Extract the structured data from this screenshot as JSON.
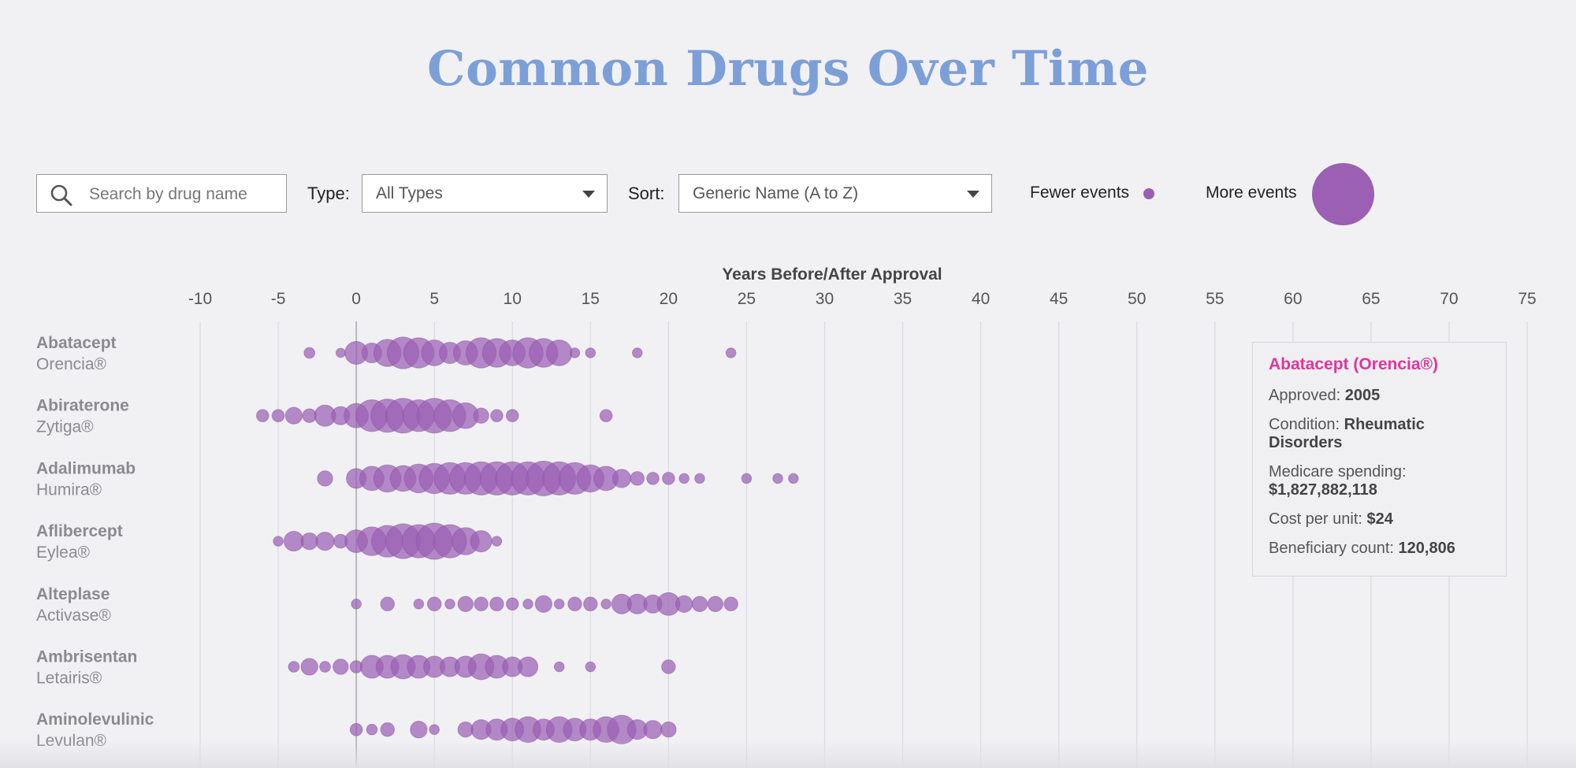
{
  "page": {
    "title": "Common Drugs Over Time"
  },
  "controls": {
    "search_placeholder": "Search by drug name",
    "type_label": "Type:",
    "type_value": "All Types",
    "sort_label": "Sort:",
    "sort_value": "Generic Name (A to Z)",
    "legend_fewer": "Fewer events",
    "legend_more": "More events"
  },
  "icons": {
    "search": "search-icon",
    "dropdown": "chevron-down-icon"
  },
  "colors": {
    "title": "#7c9fd8",
    "bubble": "#9b5fb4",
    "highlight": "#e0359a"
  },
  "tooltip": {
    "title": "Abatacept (Orencia®)",
    "approved_label": "Approved:",
    "approved_value": "2005",
    "condition_label": "Condition:",
    "condition_value": "Rheumatic Disorders",
    "spending_label": "Medicare spending:",
    "spending_value": "$1,827,882,118",
    "cost_label": "Cost per unit:",
    "cost_value": "$24",
    "beneficiary_label": "Beneficiary count:",
    "beneficiary_value": "120,806"
  },
  "chart_data": {
    "type": "scatter",
    "xlabel": "Years Before/After Approval",
    "xlim": [
      -10,
      75
    ],
    "xticks": [
      -10,
      -5,
      0,
      5,
      10,
      15,
      20,
      25,
      30,
      35,
      40,
      45,
      50,
      55,
      60,
      65,
      70,
      75
    ],
    "size_encoding": "number of events (relative)",
    "drugs": [
      {
        "generic": "Abatacept",
        "brand": "Orencia®",
        "points": [
          [
            -3,
            0.15
          ],
          [
            -1,
            0.1
          ],
          [
            0,
            0.55
          ],
          [
            1,
            0.45
          ],
          [
            2,
            0.7
          ],
          [
            3,
            0.85
          ],
          [
            4,
            0.8
          ],
          [
            5,
            0.65
          ],
          [
            6,
            0.5
          ],
          [
            7,
            0.6
          ],
          [
            8,
            0.8
          ],
          [
            9,
            0.75
          ],
          [
            10,
            0.65
          ],
          [
            11,
            0.8
          ],
          [
            12,
            0.75
          ],
          [
            13,
            0.65
          ],
          [
            14,
            0.12
          ],
          [
            15,
            0.12
          ],
          [
            18,
            0.12
          ],
          [
            24,
            0.12
          ]
        ]
      },
      {
        "generic": "Abiraterone",
        "brand": "Zytiga®",
        "points": [
          [
            -6,
            0.2
          ],
          [
            -5,
            0.2
          ],
          [
            -4,
            0.35
          ],
          [
            -3,
            0.25
          ],
          [
            -2,
            0.5
          ],
          [
            -1,
            0.4
          ],
          [
            0,
            0.6
          ],
          [
            1,
            0.85
          ],
          [
            2,
            0.9
          ],
          [
            3,
            0.95
          ],
          [
            4,
            0.85
          ],
          [
            5,
            0.95
          ],
          [
            6,
            0.85
          ],
          [
            7,
            0.65
          ],
          [
            8,
            0.3
          ],
          [
            9,
            0.2
          ],
          [
            10,
            0.2
          ],
          [
            16,
            0.2
          ]
        ]
      },
      {
        "generic": "Adalimumab",
        "brand": "Humira®",
        "points": [
          [
            -2,
            0.3
          ],
          [
            0,
            0.45
          ],
          [
            1,
            0.6
          ],
          [
            2,
            0.7
          ],
          [
            3,
            0.65
          ],
          [
            4,
            0.75
          ],
          [
            5,
            0.8
          ],
          [
            6,
            0.85
          ],
          [
            7,
            0.85
          ],
          [
            8,
            0.9
          ],
          [
            9,
            0.9
          ],
          [
            10,
            0.9
          ],
          [
            11,
            0.9
          ],
          [
            12,
            0.95
          ],
          [
            13,
            0.9
          ],
          [
            14,
            0.85
          ],
          [
            15,
            0.7
          ],
          [
            16,
            0.6
          ],
          [
            17,
            0.4
          ],
          [
            18,
            0.25
          ],
          [
            19,
            0.2
          ],
          [
            20,
            0.2
          ],
          [
            21,
            0.12
          ],
          [
            22,
            0.12
          ],
          [
            25,
            0.12
          ],
          [
            27,
            0.12
          ],
          [
            28,
            0.12
          ]
        ]
      },
      {
        "generic": "Aflibercept",
        "brand": "Eylea®",
        "points": [
          [
            -5,
            0.12
          ],
          [
            -4,
            0.45
          ],
          [
            -3,
            0.35
          ],
          [
            -2,
            0.4
          ],
          [
            -1,
            0.25
          ],
          [
            0,
            0.55
          ],
          [
            1,
            0.75
          ],
          [
            2,
            0.85
          ],
          [
            3,
            0.95
          ],
          [
            4,
            0.9
          ],
          [
            5,
            1.0
          ],
          [
            6,
            0.9
          ],
          [
            7,
            0.7
          ],
          [
            8,
            0.5
          ],
          [
            9,
            0.12
          ]
        ]
      },
      {
        "generic": "Alteplase",
        "brand": "Activase®",
        "points": [
          [
            0,
            0.12
          ],
          [
            2,
            0.25
          ],
          [
            4,
            0.12
          ],
          [
            5,
            0.25
          ],
          [
            6,
            0.12
          ],
          [
            7,
            0.3
          ],
          [
            8,
            0.25
          ],
          [
            9,
            0.25
          ],
          [
            10,
            0.2
          ],
          [
            11,
            0.12
          ],
          [
            12,
            0.35
          ],
          [
            13,
            0.12
          ],
          [
            14,
            0.25
          ],
          [
            15,
            0.25
          ],
          [
            16,
            0.12
          ],
          [
            17,
            0.45
          ],
          [
            18,
            0.45
          ],
          [
            19,
            0.4
          ],
          [
            20,
            0.55
          ],
          [
            21,
            0.35
          ],
          [
            22,
            0.3
          ],
          [
            23,
            0.3
          ],
          [
            24,
            0.25
          ]
        ]
      },
      {
        "generic": "Ambrisentan",
        "brand": "Letairis®",
        "points": [
          [
            -4,
            0.15
          ],
          [
            -3,
            0.35
          ],
          [
            -2,
            0.15
          ],
          [
            -1,
            0.3
          ],
          [
            0,
            0.2
          ],
          [
            1,
            0.55
          ],
          [
            2,
            0.55
          ],
          [
            3,
            0.6
          ],
          [
            4,
            0.55
          ],
          [
            5,
            0.5
          ],
          [
            6,
            0.45
          ],
          [
            7,
            0.5
          ],
          [
            8,
            0.65
          ],
          [
            9,
            0.55
          ],
          [
            10,
            0.45
          ],
          [
            11,
            0.45
          ],
          [
            13,
            0.12
          ],
          [
            15,
            0.12
          ],
          [
            20,
            0.25
          ]
        ]
      },
      {
        "generic": "Aminolevulinic",
        "brand": "Levulan®",
        "points": [
          [
            0,
            0.2
          ],
          [
            1,
            0.15
          ],
          [
            2,
            0.25
          ],
          [
            4,
            0.35
          ],
          [
            5,
            0.12
          ],
          [
            7,
            0.3
          ],
          [
            8,
            0.45
          ],
          [
            9,
            0.5
          ],
          [
            10,
            0.55
          ],
          [
            11,
            0.65
          ],
          [
            12,
            0.5
          ],
          [
            13,
            0.65
          ],
          [
            14,
            0.55
          ],
          [
            15,
            0.5
          ],
          [
            16,
            0.65
          ],
          [
            17,
            0.75
          ],
          [
            18,
            0.45
          ],
          [
            19,
            0.4
          ],
          [
            20,
            0.3
          ]
        ]
      }
    ]
  }
}
